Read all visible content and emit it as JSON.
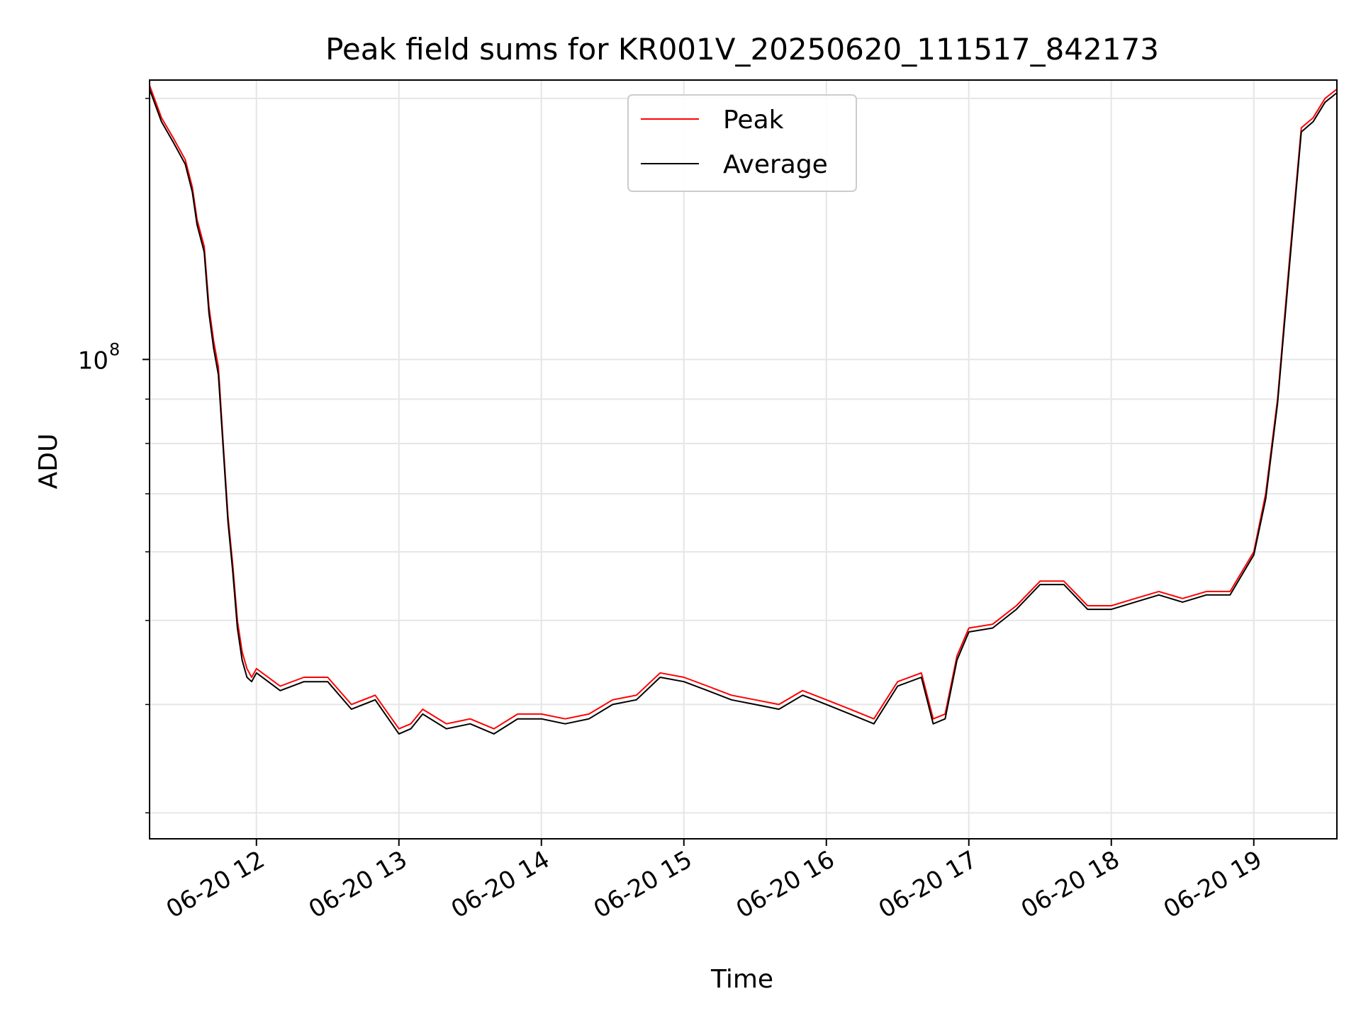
{
  "chart_data": {
    "type": "line",
    "title": "Peak field sums for KR001V_20250620_111517_842173",
    "xlabel": "Time",
    "ylabel": "ADU",
    "yscale": "log",
    "x_range": [
      "2025-06-20 11:15",
      "2025-06-20 19:35"
    ],
    "ylim": [
      28000000,
      210000000
    ],
    "x_tick_labels": [
      "06-20 12",
      "06-20 13",
      "06-20 14",
      "06-20 15",
      "06-20 16",
      "06-20 17",
      "06-20 18",
      "06-20 19"
    ],
    "x_ticks": [
      "2025-06-20 12:00",
      "2025-06-20 13:00",
      "2025-06-20 14:00",
      "2025-06-20 15:00",
      "2025-06-20 16:00",
      "2025-06-20 17:00",
      "2025-06-20 18:00",
      "2025-06-20 19:00"
    ],
    "y_major_tick": {
      "value": 100000000,
      "base": "10",
      "exponent": "8"
    },
    "y_minor_ticks": [
      30000000,
      40000000,
      50000000,
      60000000,
      70000000,
      80000000,
      90000000,
      200000000
    ],
    "grid": true,
    "legend_position": "top-center",
    "series": [
      {
        "name": "Peak",
        "color": "#ff0000",
        "points": [
          [
            "11:15",
            207000000
          ],
          [
            "11:20",
            190000000
          ],
          [
            "11:25",
            180000000
          ],
          [
            "11:30",
            170000000
          ],
          [
            "11:33",
            158000000
          ],
          [
            "11:35",
            145000000
          ],
          [
            "11:38",
            135000000
          ],
          [
            "11:40",
            115000000
          ],
          [
            "11:42",
            105000000
          ],
          [
            "11:44",
            98000000
          ],
          [
            "11:46",
            80000000
          ],
          [
            "11:48",
            66000000
          ],
          [
            "11:50",
            58000000
          ],
          [
            "11:52",
            50000000
          ],
          [
            "11:54",
            46000000
          ],
          [
            "11:56",
            44000000
          ],
          [
            "11:58",
            43000000
          ],
          [
            "12:00",
            44000000
          ],
          [
            "12:10",
            42000000
          ],
          [
            "12:20",
            43000000
          ],
          [
            "12:30",
            43000000
          ],
          [
            "12:40",
            40000000
          ],
          [
            "12:50",
            41000000
          ],
          [
            "13:00",
            37500000
          ],
          [
            "13:05",
            38000000
          ],
          [
            "13:10",
            39500000
          ],
          [
            "13:20",
            38000000
          ],
          [
            "13:30",
            38500000
          ],
          [
            "13:40",
            37500000
          ],
          [
            "13:50",
            39000000
          ],
          [
            "14:00",
            39000000
          ],
          [
            "14:10",
            38500000
          ],
          [
            "14:20",
            39000000
          ],
          [
            "14:30",
            40500000
          ],
          [
            "14:40",
            41000000
          ],
          [
            "14:50",
            43500000
          ],
          [
            "15:00",
            43000000
          ],
          [
            "15:10",
            42000000
          ],
          [
            "15:20",
            41000000
          ],
          [
            "15:30",
            40500000
          ],
          [
            "15:40",
            40000000
          ],
          [
            "15:50",
            41500000
          ],
          [
            "16:00",
            40500000
          ],
          [
            "16:10",
            39500000
          ],
          [
            "16:20",
            38500000
          ],
          [
            "16:30",
            42500000
          ],
          [
            "16:40",
            43500000
          ],
          [
            "16:45",
            38500000
          ],
          [
            "16:50",
            39000000
          ],
          [
            "16:55",
            45500000
          ],
          [
            "17:00",
            49000000
          ],
          [
            "17:10",
            49500000
          ],
          [
            "17:20",
            52000000
          ],
          [
            "17:30",
            55500000
          ],
          [
            "17:40",
            55500000
          ],
          [
            "17:50",
            52000000
          ],
          [
            "18:00",
            52000000
          ],
          [
            "18:10",
            53000000
          ],
          [
            "18:20",
            54000000
          ],
          [
            "18:30",
            53000000
          ],
          [
            "18:40",
            54000000
          ],
          [
            "18:50",
            54000000
          ],
          [
            "19:00",
            60000000
          ],
          [
            "19:05",
            70000000
          ],
          [
            "19:10",
            90000000
          ],
          [
            "19:15",
            130000000
          ],
          [
            "19:20",
            185000000
          ],
          [
            "19:25",
            190000000
          ],
          [
            "19:30",
            200000000
          ],
          [
            "19:35",
            205000000
          ]
        ]
      },
      {
        "name": "Average",
        "color": "#000000",
        "points": [
          [
            "11:15",
            205000000
          ],
          [
            "11:20",
            188000000
          ],
          [
            "11:25",
            178000000
          ],
          [
            "11:30",
            168000000
          ],
          [
            "11:33",
            156000000
          ],
          [
            "11:35",
            143000000
          ],
          [
            "11:38",
            133000000
          ],
          [
            "11:40",
            113000000
          ],
          [
            "11:42",
            103000000
          ],
          [
            "11:44",
            96000000
          ],
          [
            "11:46",
            79000000
          ],
          [
            "11:48",
            65000000
          ],
          [
            "11:50",
            57000000
          ],
          [
            "11:52",
            49000000
          ],
          [
            "11:54",
            45000000
          ],
          [
            "11:56",
            43000000
          ],
          [
            "11:58",
            42500000
          ],
          [
            "12:00",
            43500000
          ],
          [
            "12:10",
            41500000
          ],
          [
            "12:20",
            42500000
          ],
          [
            "12:30",
            42500000
          ],
          [
            "12:40",
            39500000
          ],
          [
            "12:50",
            40500000
          ],
          [
            "13:00",
            37000000
          ],
          [
            "13:05",
            37500000
          ],
          [
            "13:10",
            39000000
          ],
          [
            "13:20",
            37500000
          ],
          [
            "13:30",
            38000000
          ],
          [
            "13:40",
            37000000
          ],
          [
            "13:50",
            38500000
          ],
          [
            "14:00",
            38500000
          ],
          [
            "14:10",
            38000000
          ],
          [
            "14:20",
            38500000
          ],
          [
            "14:30",
            40000000
          ],
          [
            "14:40",
            40500000
          ],
          [
            "14:50",
            43000000
          ],
          [
            "15:00",
            42500000
          ],
          [
            "15:10",
            41500000
          ],
          [
            "15:20",
            40500000
          ],
          [
            "15:30",
            40000000
          ],
          [
            "15:40",
            39500000
          ],
          [
            "15:50",
            41000000
          ],
          [
            "16:00",
            40000000
          ],
          [
            "16:10",
            39000000
          ],
          [
            "16:20",
            38000000
          ],
          [
            "16:30",
            42000000
          ],
          [
            "16:40",
            43000000
          ],
          [
            "16:45",
            38000000
          ],
          [
            "16:50",
            38500000
          ],
          [
            "16:55",
            45000000
          ],
          [
            "17:00",
            48500000
          ],
          [
            "17:10",
            49000000
          ],
          [
            "17:20",
            51500000
          ],
          [
            "17:30",
            55000000
          ],
          [
            "17:40",
            55000000
          ],
          [
            "17:50",
            51500000
          ],
          [
            "18:00",
            51500000
          ],
          [
            "18:10",
            52500000
          ],
          [
            "18:20",
            53500000
          ],
          [
            "18:30",
            52500000
          ],
          [
            "18:40",
            53500000
          ],
          [
            "18:50",
            53500000
          ],
          [
            "19:00",
            59500000
          ],
          [
            "19:05",
            69000000
          ],
          [
            "19:10",
            89000000
          ],
          [
            "19:15",
            128000000
          ],
          [
            "19:20",
            183000000
          ],
          [
            "19:25",
            188000000
          ],
          [
            "19:30",
            198000000
          ],
          [
            "19:35",
            203000000
          ]
        ]
      }
    ]
  }
}
